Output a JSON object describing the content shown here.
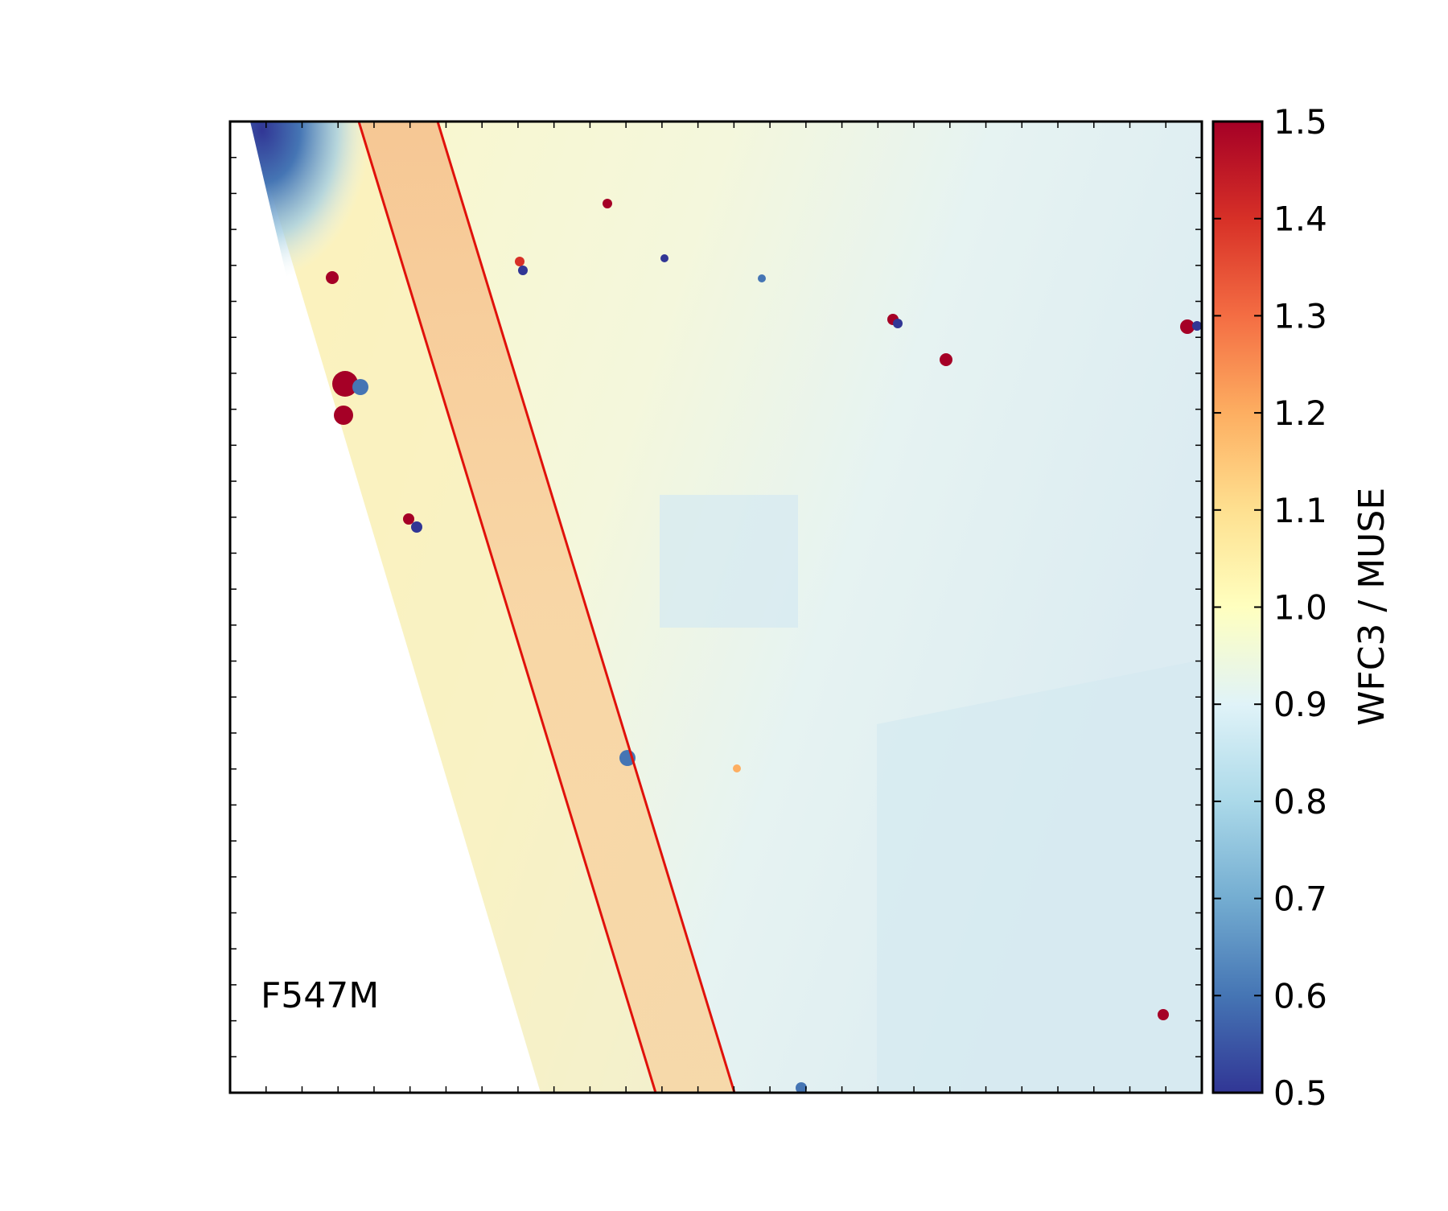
{
  "chart_data": {
    "type": "heatmap",
    "title": "",
    "xlabel": "",
    "ylabel": "",
    "annotations": [
      {
        "text": "F547M"
      }
    ],
    "colorbar": {
      "label": "WFC3 / MUSE",
      "colormap": "RdYlBu_r",
      "range": [
        0.5,
        1.5
      ],
      "ticks": [
        0.5,
        0.6,
        0.7,
        0.8,
        0.9,
        1.0,
        1.1,
        1.2,
        1.3,
        1.4,
        1.5
      ],
      "tick_labels": [
        "0.5",
        "0.6",
        "0.7",
        "0.8",
        "0.9",
        "1.0",
        "1.1",
        "1.2",
        "1.3",
        "1.4",
        "1.5"
      ],
      "colors": [
        "#313695",
        "#4575b4",
        "#74add1",
        "#abd9e9",
        "#e0f3f8",
        "#ffffbf",
        "#fee090",
        "#fdae61",
        "#f46d43",
        "#d73027",
        "#a50026"
      ]
    },
    "ratio_summary": {
      "band_inside_lines": 1.12,
      "background_left": 1.0,
      "background_right": 0.92,
      "saturated_sources_max": 1.5,
      "saturated_sources_min": 0.5
    },
    "overlay_line_color": "#e0110b"
  }
}
